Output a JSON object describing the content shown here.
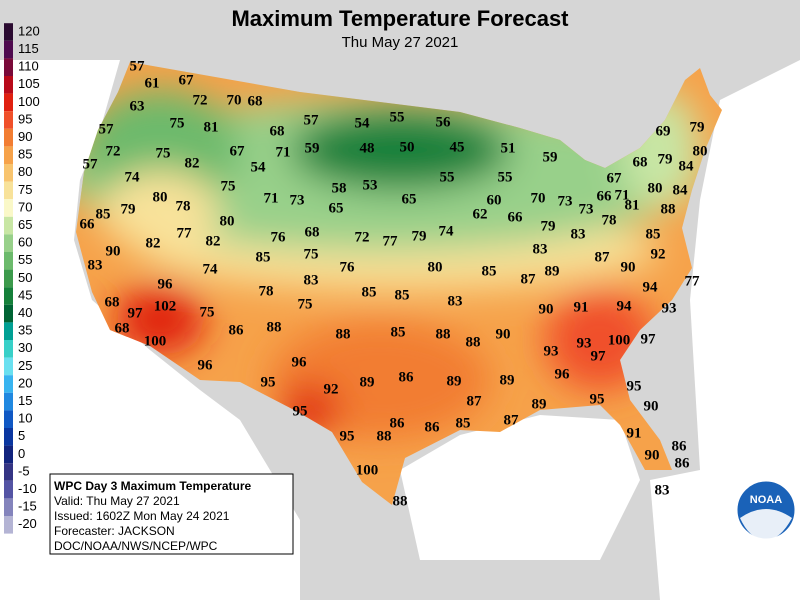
{
  "header": {
    "title": "Maximum Temperature Forecast",
    "subtitle": "Thu May 27 2021"
  },
  "legend": {
    "labels": [
      120,
      115,
      110,
      105,
      100,
      95,
      90,
      85,
      80,
      75,
      70,
      65,
      60,
      55,
      50,
      45,
      40,
      35,
      30,
      25,
      20,
      15,
      10,
      5,
      0,
      -5,
      -10,
      -15,
      -20
    ],
    "colors": [
      "#2a0a30",
      "#4e0a4e",
      "#7a0a3a",
      "#b80a1a",
      "#e02010",
      "#f0502a",
      "#f27d32",
      "#f6a24a",
      "#f8c46e",
      "#f8e29a",
      "#faf8c8",
      "#c8e6a4",
      "#98d08a",
      "#6cba6c",
      "#3c9a4c",
      "#15803a",
      "#006434",
      "#00a094",
      "#38d0c8",
      "#6ae0f0",
      "#38b4f0",
      "#2088e0",
      "#1058c4",
      "#0a36a0",
      "#12247e",
      "#343484",
      "#5454a4",
      "#8484bc",
      "#b4b4d4"
    ]
  },
  "stations": [
    57,
    61,
    67,
    72,
    70,
    68,
    63,
    75,
    81,
    57,
    68,
    57,
    54,
    55,
    56,
    72,
    75,
    67,
    71,
    59,
    48,
    50,
    45,
    51,
    59,
    69,
    79,
    57,
    82,
    54,
    58,
    53,
    55,
    55,
    68,
    79,
    80,
    84,
    74,
    80,
    78,
    75,
    71,
    73,
    65,
    65,
    62,
    60,
    66,
    70,
    73,
    67,
    71,
    66,
    73,
    80,
    84,
    81,
    88,
    78,
    85,
    79,
    66,
    80,
    77,
    82,
    82,
    76,
    68,
    72,
    77,
    79,
    74,
    79,
    83,
    85,
    90,
    85,
    75,
    83,
    87,
    92,
    83,
    74,
    76,
    80,
    85,
    87,
    89,
    90,
    77,
    96,
    78,
    83,
    85,
    85,
    83,
    94,
    68,
    97,
    102,
    75,
    75,
    90,
    91,
    94,
    93,
    68,
    100,
    86,
    88,
    88,
    85,
    88,
    88,
    90,
    93,
    100,
    97,
    96,
    96,
    93,
    97,
    92,
    89,
    86,
    89,
    89,
    96,
    95,
    87,
    89,
    95,
    95,
    95,
    86,
    86,
    85,
    87,
    90,
    95,
    88,
    91,
    86,
    90,
    86,
    100,
    88,
    83
  ],
  "info_box": {
    "lines": [
      "WPC Day 3 Maximum Temperature",
      "Valid: Thu May 27 2021",
      "Issued: 1602Z Mon May 24 2021",
      "Forecaster: JACKSON",
      "DOC/NOAA/NWS/NCEP/WPC"
    ]
  },
  "logo": "NOAA"
}
